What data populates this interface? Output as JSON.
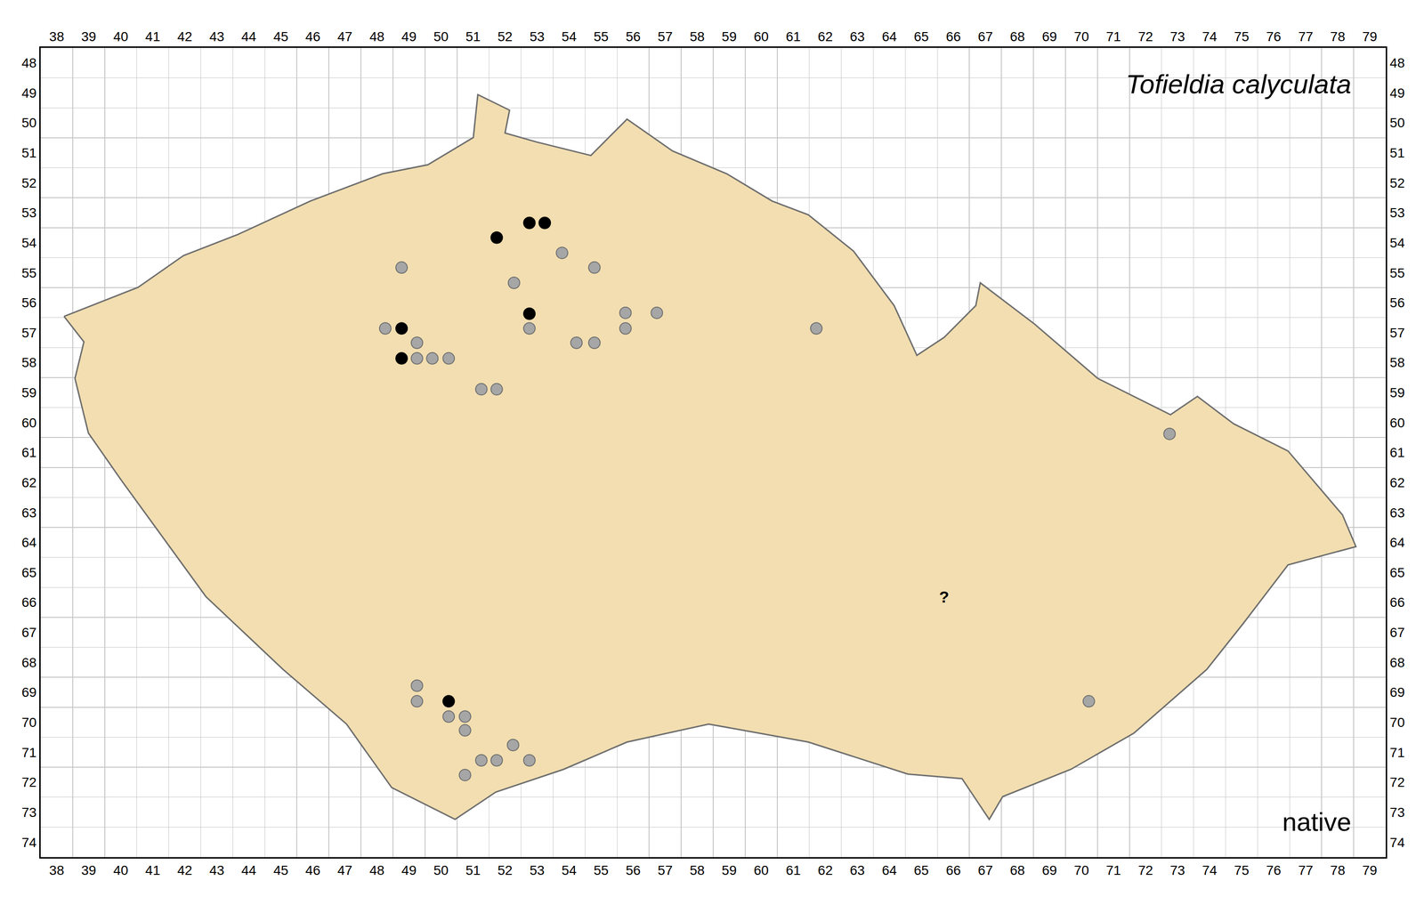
{
  "chart_data": {
    "type": "map",
    "title": "Tofieldia calyculata",
    "annotations": [
      "native"
    ],
    "xlim": [
      37.5,
      79.5
    ],
    "ylim": [
      74.5,
      47.5
    ],
    "xticks": [
      38,
      39,
      40,
      41,
      42,
      43,
      44,
      45,
      46,
      47,
      48,
      49,
      50,
      51,
      52,
      53,
      54,
      55,
      56,
      57,
      58,
      59,
      60,
      61,
      62,
      63,
      64,
      65,
      66,
      67,
      68,
      69,
      70,
      71,
      72,
      73,
      74,
      75,
      76,
      77,
      78,
      79
    ],
    "yticks": [
      48,
      49,
      50,
      51,
      52,
      53,
      54,
      55,
      56,
      57,
      58,
      59,
      60,
      61,
      62,
      63,
      64,
      65,
      66,
      67,
      68,
      69,
      70,
      71,
      72,
      73,
      74
    ],
    "grid": true,
    "border": {
      "color": "#f2deb0",
      "x": [
        38.23,
        40.54,
        41.96,
        43.65,
        45.92,
        48.18,
        49.59,
        51.01,
        51.15,
        52.14,
        52.0,
        52.98,
        54.68,
        55.81,
        57.23,
        58.92,
        60.34,
        61.47,
        62.88,
        64.15,
        64.86,
        65.71,
        66.7,
        66.84,
        68.53,
        70.51,
        72.78,
        73.62,
        74.75,
        76.45,
        78.15,
        78.57,
        76.45,
        75.04,
        73.91,
        71.64,
        69.67,
        67.54,
        67.12,
        66.27,
        64.58,
        61.47,
        58.36,
        55.81,
        53.83,
        51.71,
        50.44,
        48.46,
        47.05,
        45.07,
        42.66,
        41.11,
        39.98,
        38.99,
        38.57,
        38.85,
        38.23
      ],
      "y": [
        56.46,
        55.49,
        54.43,
        53.73,
        52.61,
        51.7,
        51.4,
        50.49,
        49.06,
        49.58,
        50.34,
        50.64,
        51.09,
        49.88,
        50.94,
        51.7,
        52.61,
        53.07,
        54.28,
        56.1,
        57.76,
        57.16,
        56.1,
        55.34,
        56.71,
        58.53,
        59.74,
        59.13,
        60.04,
        60.95,
        63.08,
        64.14,
        64.75,
        66.72,
        68.24,
        70.36,
        71.57,
        72.48,
        73.24,
        71.88,
        71.73,
        70.66,
        70.06,
        70.66,
        71.57,
        72.33,
        73.24,
        72.18,
        70.06,
        68.24,
        65.81,
        63.53,
        61.87,
        60.35,
        58.53,
        57.31,
        56.46
      ]
    },
    "series": [
      {
        "color": "#a6a6a6",
        "marker": "circle",
        "x": [
          53.78,
          54.79,
          48.77,
          52.28,
          48.26,
          55.76,
          56.74,
          55.76,
          52.76,
          54.23,
          54.79,
          61.72,
          49.25,
          49.25,
          49.73,
          50.24,
          51.26,
          51.74,
          72.75,
          49.25,
          49.25,
          50.24,
          50.75,
          50.75,
          52.25,
          51.26,
          51.74,
          52.76,
          50.75,
          70.23
        ],
        "y": [
          54.34,
          54.83,
          54.83,
          55.34,
          56.86,
          56.34,
          56.34,
          56.86,
          56.86,
          57.34,
          57.34,
          56.86,
          57.34,
          57.86,
          57.86,
          57.86,
          58.89,
          58.89,
          60.38,
          68.78,
          69.3,
          69.81,
          69.81,
          70.27,
          70.76,
          71.27,
          71.27,
          71.27,
          71.76,
          69.3
        ]
      },
      {
        "color": "#000000",
        "marker": "circle",
        "x": [
          52.76,
          53.24,
          51.74,
          52.76,
          48.77,
          48.77,
          50.24
        ],
        "y": [
          53.34,
          53.34,
          53.83,
          56.37,
          56.86,
          57.86,
          69.3
        ]
      }
    ],
    "uncertain": {
      "label": "?",
      "x": 65.71,
      "y": 65.87
    }
  }
}
